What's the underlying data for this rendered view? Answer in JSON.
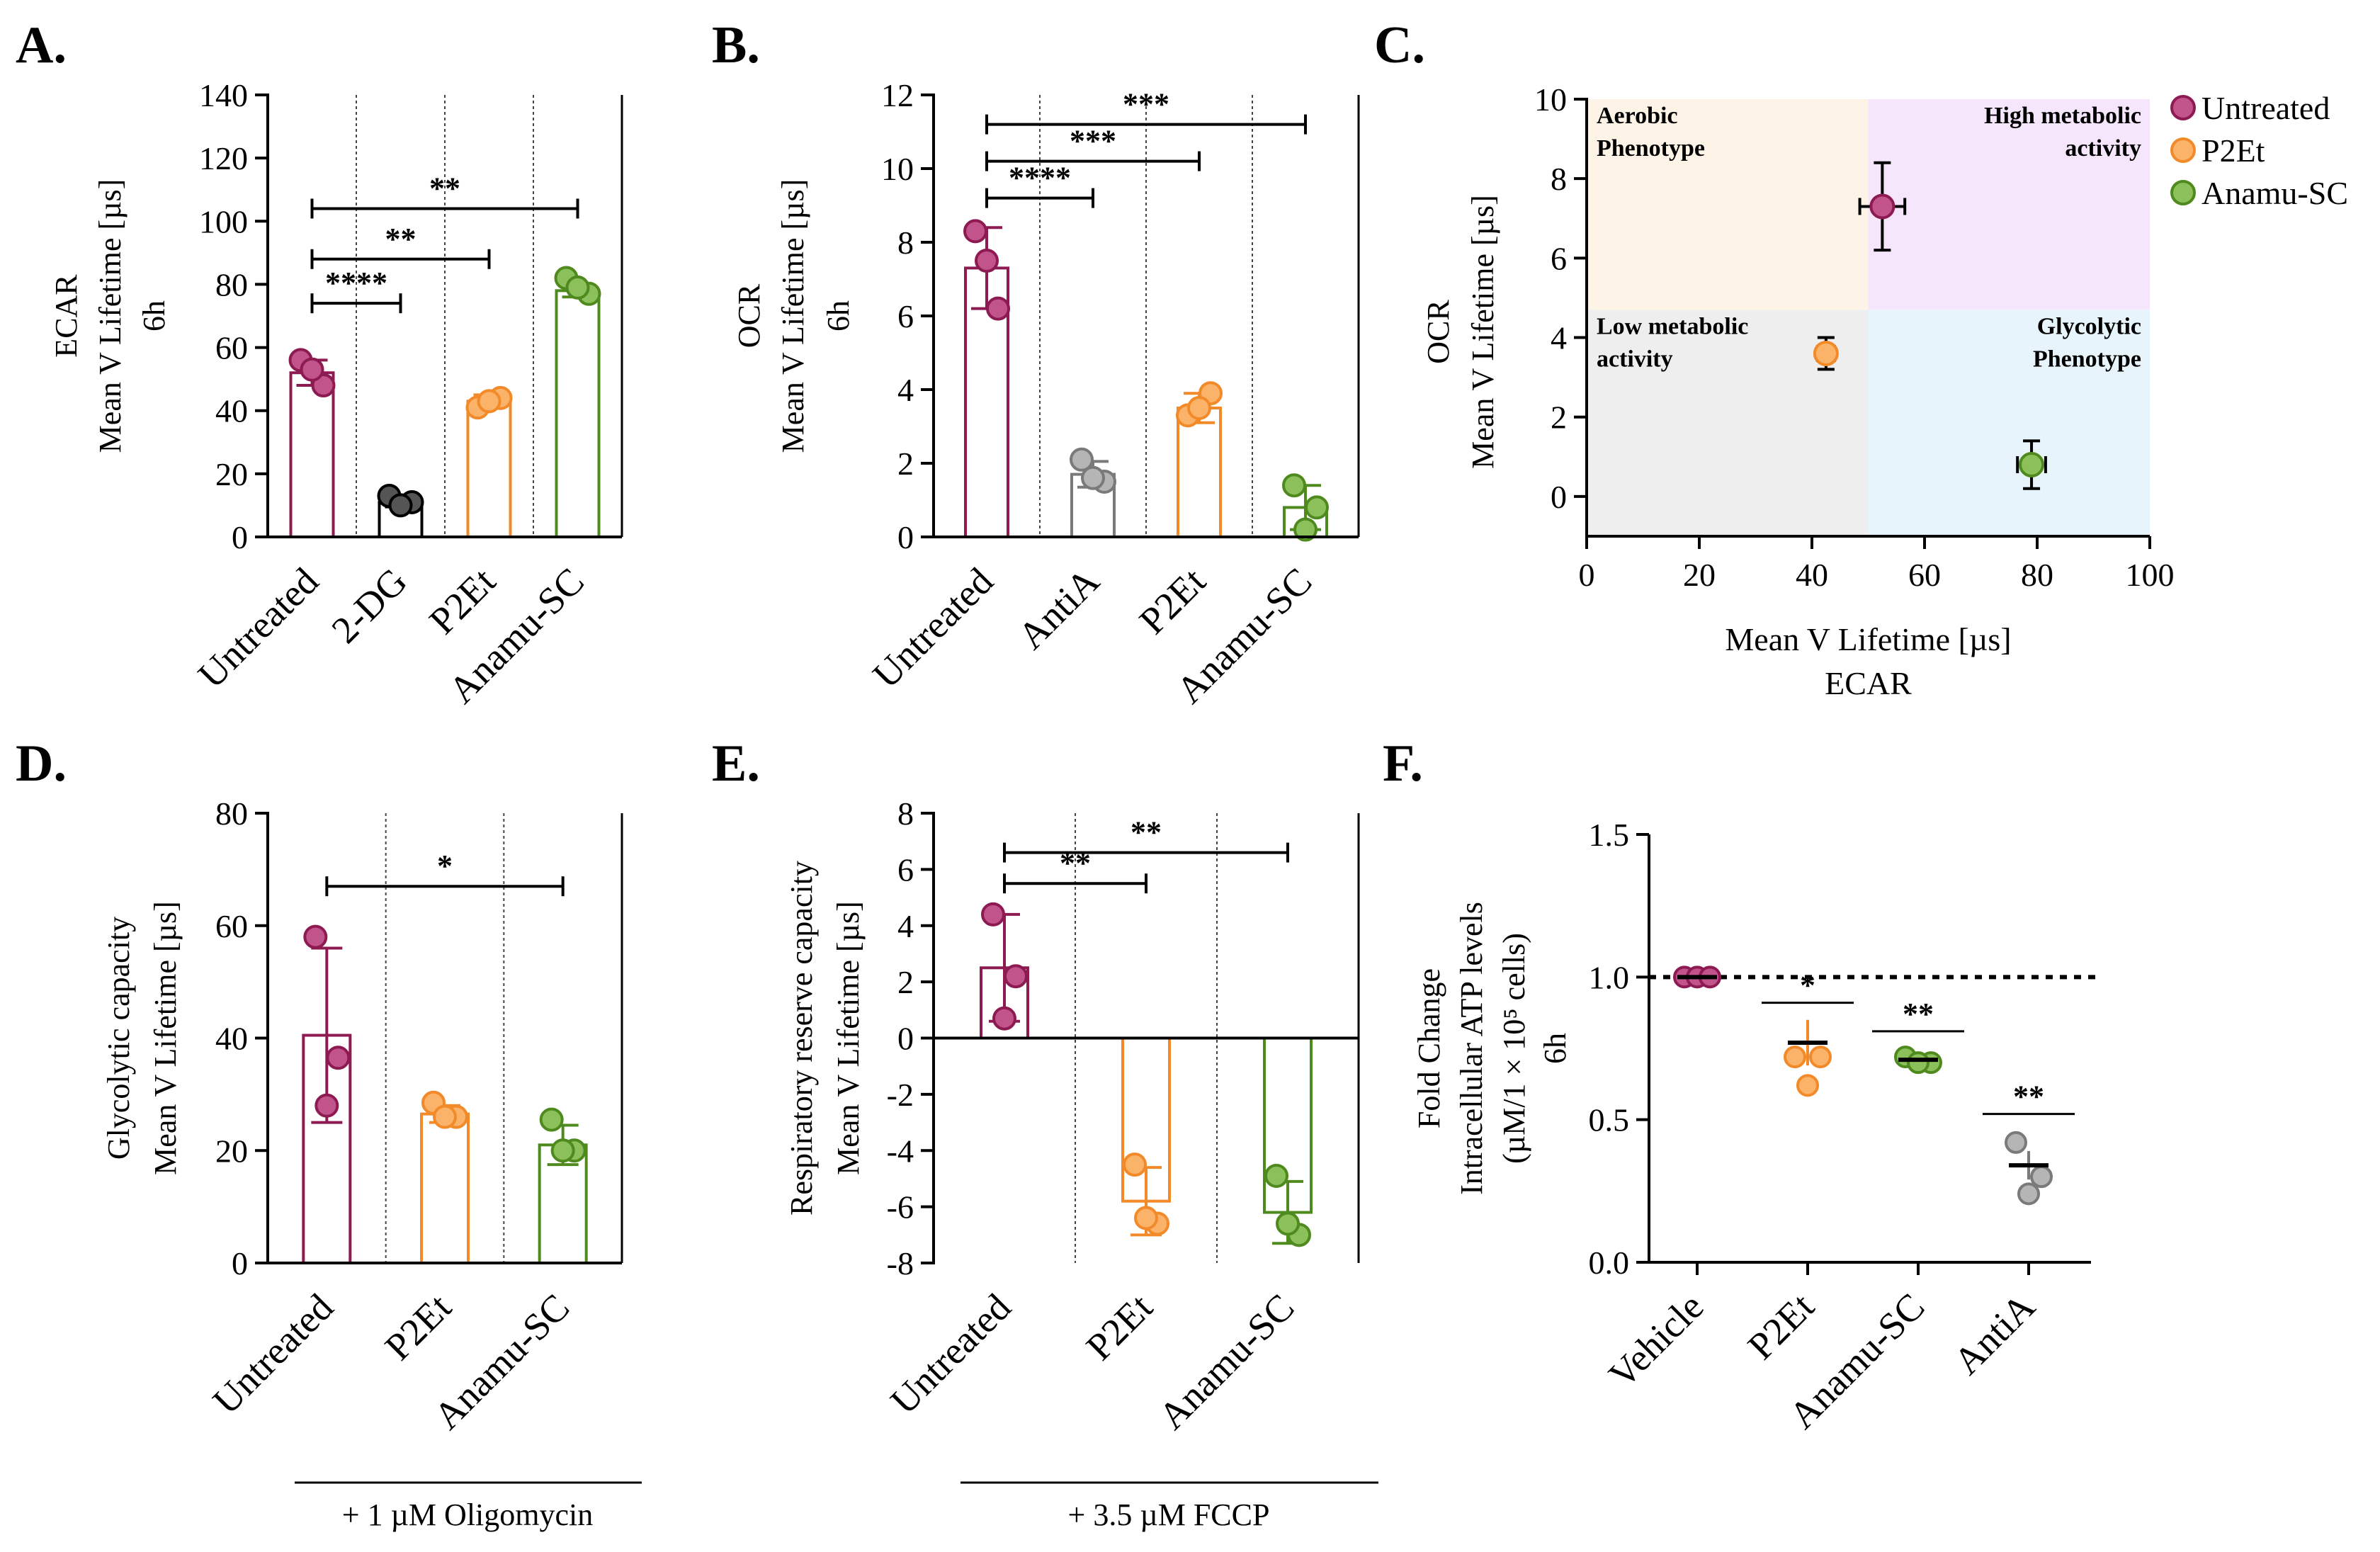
{
  "colors": {
    "untreated": "#8e1a52",
    "untreated_fill": "#c2548c",
    "gray": "#7a7a7a",
    "gray_fill": "#b5b5b5",
    "black": "#000000",
    "black_fill": "#555555",
    "orange": "#f28a2a",
    "orange_fill": "#fbb36a",
    "green": "#4f8a1f",
    "green_fill": "#8cc05a",
    "q_aerobic": "#fdf4e7",
    "q_high": "#f5e6fb",
    "q_low": "#eeeeee",
    "q_glyco": "#e8f4fb"
  },
  "chart_data": [
    {
      "id": "A",
      "panel_label": "A.",
      "type": "bar",
      "ylabel_lines": [
        "ECAR",
        "Mean V Lifetime [µs]",
        "6h"
      ],
      "ylim": [
        0,
        140
      ],
      "yticks": [
        0,
        20,
        40,
        60,
        80,
        100,
        120,
        140
      ],
      "ytick_labels": [
        "0",
        "20",
        "40",
        "60",
        "80",
        "100",
        "120",
        "140"
      ],
      "categories": [
        "Untreated",
        "2-DG",
        "P2Et",
        "Anamu-SC"
      ],
      "values": [
        52,
        11,
        43,
        78
      ],
      "errors": [
        4,
        1.5,
        2,
        2
      ],
      "points": [
        [
          56,
          48,
          53
        ],
        [
          13,
          11,
          10
        ],
        [
          41,
          44,
          43
        ],
        [
          82,
          77,
          79
        ]
      ],
      "color_keys": [
        "untreated",
        "black",
        "orange",
        "green"
      ],
      "comparisons": [
        {
          "from": 0,
          "to": 1,
          "y": 74,
          "label": "****"
        },
        {
          "from": 0,
          "to": 2,
          "y": 88,
          "label": "**"
        },
        {
          "from": 0,
          "to": 3,
          "y": 104,
          "label": "**"
        }
      ]
    },
    {
      "id": "B",
      "panel_label": "B.",
      "type": "bar",
      "ylabel_lines": [
        "OCR",
        "Mean V Lifetime [µs]",
        "6h"
      ],
      "ylim": [
        0,
        12
      ],
      "yticks": [
        0,
        2,
        4,
        6,
        8,
        10,
        12
      ],
      "ytick_labels": [
        "0",
        "2",
        "4",
        "6",
        "8",
        "10",
        "12"
      ],
      "categories": [
        "Untreated",
        "AntiA",
        "P2Et",
        "Anamu-SC"
      ],
      "values": [
        7.3,
        1.7,
        3.5,
        0.8
      ],
      "errors": [
        1.1,
        0.35,
        0.4,
        0.6
      ],
      "points": [
        [
          8.3,
          6.2,
          7.5
        ],
        [
          2.1,
          1.5,
          1.6
        ],
        [
          3.3,
          3.9,
          3.5
        ],
        [
          1.4,
          0.8,
          0.2
        ]
      ],
      "color_keys": [
        "untreated",
        "gray",
        "orange",
        "green"
      ],
      "comparisons": [
        {
          "from": 0,
          "to": 1,
          "y": 9.2,
          "label": "****"
        },
        {
          "from": 0,
          "to": 2,
          "y": 10.2,
          "label": "***"
        },
        {
          "from": 0,
          "to": 3,
          "y": 11.2,
          "label": "***"
        }
      ]
    },
    {
      "id": "C",
      "panel_label": "C.",
      "type": "scatter",
      "xlabel_lines": [
        "Mean V Lifetime [µs]",
        "ECAR"
      ],
      "ylabel_lines": [
        "OCR",
        "Mean V Lifetime [µs]"
      ],
      "xlim": [
        0,
        100
      ],
      "ylim": [
        -1,
        10
      ],
      "xticks": [
        0,
        20,
        40,
        60,
        80,
        100
      ],
      "xtick_labels": [
        "0",
        "20",
        "40",
        "60",
        "80",
        "100"
      ],
      "yticks": [
        0,
        2,
        4,
        6,
        8,
        10
      ],
      "ytick_labels": [
        "0",
        "2",
        "4",
        "6",
        "8",
        "10"
      ],
      "quadrant_split": {
        "x": 50,
        "y": 4.7
      },
      "quadrants": [
        {
          "lines": [
            "Aerobic",
            "Phenotype"
          ],
          "color_key": "q_aerobic",
          "pos": "top-left"
        },
        {
          "lines": [
            "High metabolic",
            "activity"
          ],
          "color_key": "q_high",
          "pos": "top-right"
        },
        {
          "lines": [
            "Low metabolic",
            "activity"
          ],
          "color_key": "q_low",
          "pos": "bottom-left"
        },
        {
          "lines": [
            "Glycolytic",
            "Phenotype"
          ],
          "color_key": "q_glyco",
          "pos": "bottom-right"
        }
      ],
      "series": [
        {
          "name": "Untreated",
          "x": 52.5,
          "y": 7.3,
          "xerr": 4,
          "yerr": 1.1,
          "color_key": "untreated"
        },
        {
          "name": "P2Et",
          "x": 42.5,
          "y": 3.6,
          "xerr": 1.5,
          "yerr": 0.4,
          "color_key": "orange"
        },
        {
          "name": "Anamu-SC",
          "x": 79,
          "y": 0.8,
          "xerr": 2.5,
          "yerr": 0.6,
          "color_key": "green"
        }
      ],
      "legend": {
        "position": "top-right-outside",
        "entries": [
          "Untreated",
          "P2Et",
          "Anamu-SC"
        ]
      }
    },
    {
      "id": "D",
      "panel_label": "D.",
      "type": "bar",
      "ylabel_lines": [
        "Glycolytic capacity",
        "Mean V Lifetime [µs]"
      ],
      "ylim": [
        0,
        80
      ],
      "yticks": [
        0,
        20,
        40,
        60,
        80
      ],
      "ytick_labels": [
        "0",
        "20",
        "40",
        "60",
        "80"
      ],
      "categories": [
        "Untreated",
        "P2Et",
        "Anamu-SC"
      ],
      "values": [
        40.5,
        26.5,
        21
      ],
      "errors": [
        15.5,
        1.5,
        3.5
      ],
      "points": [
        [
          58,
          36.5,
          28
        ],
        [
          28.5,
          26,
          26
        ],
        [
          25.5,
          20,
          20
        ]
      ],
      "color_keys": [
        "untreated",
        "orange",
        "green"
      ],
      "comparisons": [
        {
          "from": 0,
          "to": 2,
          "y": 67,
          "label": "*"
        }
      ],
      "footnote": "+ 1 µM Oligomycin"
    },
    {
      "id": "E",
      "panel_label": "E.",
      "type": "bar",
      "ylabel_lines": [
        "Respiratory reserve capacity",
        "Mean V Lifetime [µs]"
      ],
      "ylim": [
        -8,
        8
      ],
      "yticks": [
        -8,
        -6,
        -4,
        -2,
        0,
        2,
        4,
        6,
        8
      ],
      "ytick_labels": [
        "-8",
        "-6",
        "-4",
        "-2",
        "0",
        "2",
        "4",
        "6",
        "8"
      ],
      "categories": [
        "Untreated",
        "P2Et",
        "Anamu-SC"
      ],
      "values": [
        2.5,
        -5.8,
        -6.2
      ],
      "errors": [
        1.9,
        1.2,
        1.1
      ],
      "points": [
        [
          4.4,
          2.2,
          0.7
        ],
        [
          -4.5,
          -6.6,
          -6.4
        ],
        [
          -4.9,
          -7.0,
          -6.6
        ]
      ],
      "color_keys": [
        "untreated",
        "orange",
        "green"
      ],
      "comparisons": [
        {
          "from": 0,
          "to": 1,
          "y": 5.5,
          "label": "**"
        },
        {
          "from": 0,
          "to": 2,
          "y": 6.6,
          "label": "**"
        }
      ],
      "footnote": "+ 3.5 µM FCCP"
    },
    {
      "id": "F",
      "panel_label": "F.",
      "type": "scatter",
      "ylabel_lines": [
        "Fold Change",
        "Intracellular ATP levels",
        "(µM/1 × 10⁵ cells)",
        "6h"
      ],
      "ylim": [
        0,
        1.5
      ],
      "yticks": [
        0,
        0.5,
        1.0,
        1.5
      ],
      "ytick_labels": [
        "0.0",
        "0.5",
        "1.0",
        "1.5"
      ],
      "categories": [
        "Vehicle",
        "P2Et",
        "Anamu-SC",
        "AntiA"
      ],
      "means": [
        1.0,
        0.77,
        0.71,
        0.34
      ],
      "errors": [
        0,
        0.08,
        0.01,
        0.05
      ],
      "points": [
        [
          1.0,
          1.0,
          1.0
        ],
        [
          0.72,
          0.72,
          0.62
        ],
        [
          0.72,
          0.7,
          0.7
        ],
        [
          0.42,
          0.3,
          0.24
        ]
      ],
      "color_keys": [
        "untreated",
        "orange",
        "green",
        "gray"
      ],
      "reference_line": 1.0,
      "significance": [
        {
          "index": 1,
          "y": 0.91,
          "label": "*"
        },
        {
          "index": 2,
          "y": 0.81,
          "label": "**"
        },
        {
          "index": 3,
          "y": 0.52,
          "label": "**"
        }
      ]
    }
  ]
}
